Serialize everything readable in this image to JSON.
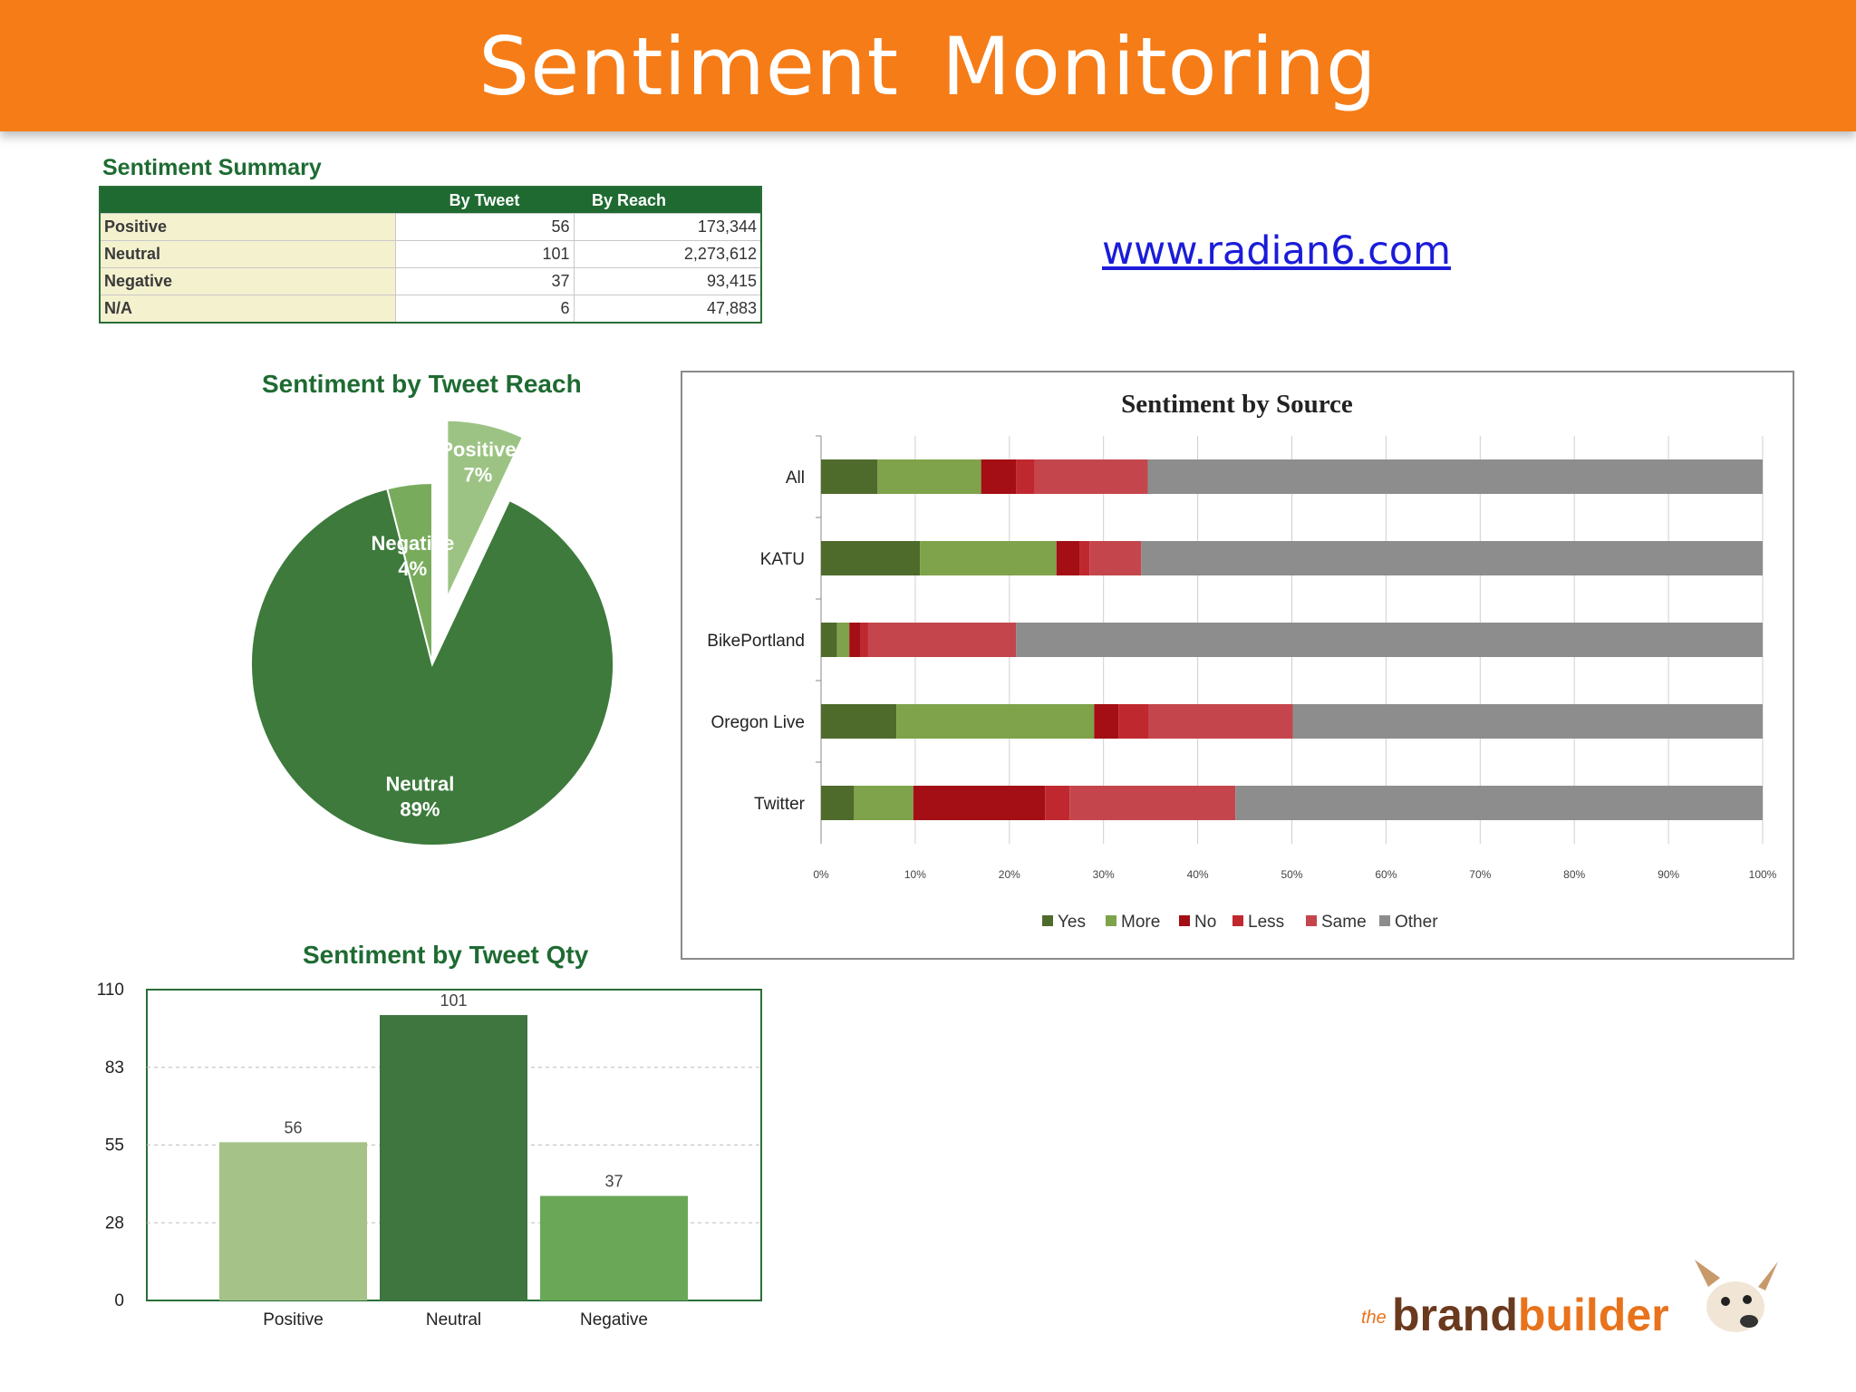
{
  "header": {
    "title": "Sentiment  Monitoring"
  },
  "link": {
    "text": "www.radian6.com"
  },
  "summary": {
    "title": "Sentiment Summary",
    "columns": [
      "",
      "By Tweet",
      "By Reach"
    ],
    "rows": [
      {
        "label": "Positive",
        "by_tweet": "56",
        "by_reach": "173,344"
      },
      {
        "label": "Neutral",
        "by_tweet": "101",
        "by_reach": "2,273,612"
      },
      {
        "label": "Negative",
        "by_tweet": "37",
        "by_reach": "93,415"
      },
      {
        "label": "N/A",
        "by_tweet": "6",
        "by_reach": "47,883"
      }
    ]
  },
  "logo": {
    "text_prefix": "brand",
    "text_suffix": "builder",
    "small": "the"
  },
  "chart_data": [
    {
      "type": "pie",
      "title": "Sentiment by Tweet Reach",
      "slices": [
        {
          "label": "Positive",
          "value": 7,
          "value_label": "7%",
          "color": "#9cc383",
          "exploded": true
        },
        {
          "label": "Negative",
          "value": 4,
          "value_label": "4%",
          "color": "#78ac5c",
          "exploded": false
        },
        {
          "label": "Neutral",
          "value": 89,
          "value_label": "89%",
          "color": "#3d7a3c",
          "exploded": false
        }
      ]
    },
    {
      "type": "bar",
      "title": "Sentiment by Source",
      "orientation": "horizontal",
      "stacked": true,
      "categories": [
        "All",
        "KATU",
        "BikePortland",
        "Oregon Live",
        "Twitter"
      ],
      "series": [
        {
          "name": "Yes",
          "color": "#4f6b2c",
          "values": [
            6,
            10.5,
            1.7,
            8,
            3.5
          ]
        },
        {
          "name": "More",
          "color": "#7ea34a",
          "values": [
            11,
            14.5,
            1.3,
            21,
            6.3
          ]
        },
        {
          "name": "No",
          "color": "#a30f14",
          "values": [
            3.7,
            2.5,
            1.2,
            2.6,
            14
          ]
        },
        {
          "name": "Less",
          "color": "#c0282f",
          "values": [
            2,
            1,
            0.8,
            3.2,
            2.6
          ]
        },
        {
          "name": "Same",
          "color": "#c4464c",
          "values": [
            12,
            5.5,
            15.7,
            15.3,
            17.6
          ]
        },
        {
          "name": "Other",
          "color": "#8d8d8d",
          "values": [
            65.3,
            66,
            79.3,
            49.9,
            56
          ]
        }
      ],
      "xlim": [
        0,
        100
      ],
      "xticks": [
        "0%",
        "10%",
        "20%",
        "30%",
        "40%",
        "50%",
        "60%",
        "70%",
        "80%",
        "90%",
        "100%"
      ],
      "grid": true,
      "legend": "bottom"
    },
    {
      "type": "bar",
      "title": "Sentiment by Tweet Qty",
      "categories": [
        "Positive",
        "Neutral",
        "Negative"
      ],
      "values": [
        56,
        101,
        37
      ],
      "value_labels": [
        "56",
        "101",
        "37"
      ],
      "colors": [
        "#a5c288",
        "#3f7640",
        "#6aa857"
      ],
      "ylim": [
        0,
        110
      ],
      "yticks": [
        "0",
        "28",
        "55",
        "83",
        "110"
      ],
      "ytick_values": [
        0,
        27.5,
        55,
        82.5,
        110
      ],
      "grid": true
    }
  ]
}
